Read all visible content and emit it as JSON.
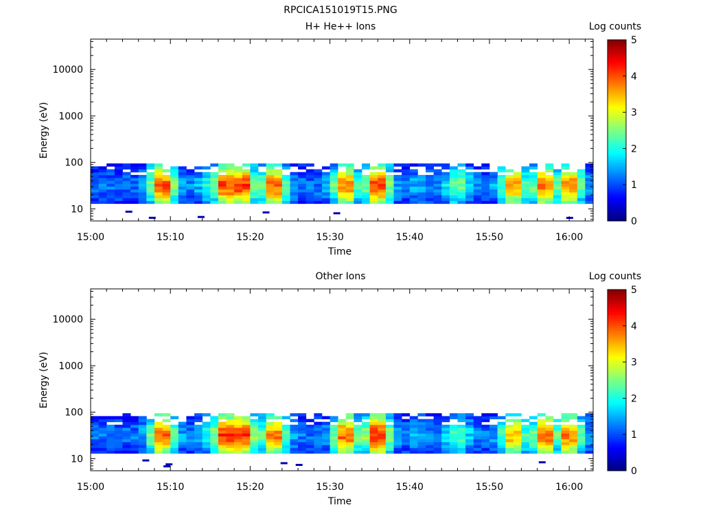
{
  "file_title": "RPCICA151019T15.PNG",
  "chart_data": [
    {
      "type": "heatmap",
      "title": "H+ He++ Ions",
      "xlabel": "Time",
      "ylabel": "Energy (eV)",
      "colorbar_label": "Log counts",
      "colorbar_ticks": [
        "0",
        "1",
        "2",
        "3",
        "4",
        "5"
      ],
      "colorbar_range": [
        0,
        5
      ],
      "colormap": [
        "#00007f",
        "#0000ff",
        "#007fff",
        "#00ffff",
        "#7fff7f",
        "#ffff00",
        "#ff7f00",
        "#ff0000",
        "#7f0000"
      ],
      "x_ticks": [
        "15:00",
        "15:10",
        "15:20",
        "15:30",
        "15:40",
        "15:50",
        "16:00"
      ],
      "x_range_minutes": [
        0,
        63
      ],
      "y_scale": "log",
      "y_range": [
        5.5,
        45000
      ],
      "y_ticks": [
        "10",
        "100",
        "1000",
        "10000"
      ],
      "bands": [
        {
          "t_start": 0,
          "t_end": 63,
          "e_low": 13,
          "e_high": 95,
          "peaks": [
            {
              "t": 9,
              "v": 4.2
            },
            {
              "t": 15,
              "v": 2.0
            },
            {
              "t": 17,
              "v": 4.3
            },
            {
              "t": 19,
              "v": 4.4
            },
            {
              "t": 23,
              "v": 4.1
            },
            {
              "t": 27,
              "v": 1.2
            },
            {
              "t": 32,
              "v": 3.9
            },
            {
              "t": 36,
              "v": 4.3
            },
            {
              "t": 41,
              "v": 1.5
            },
            {
              "t": 46,
              "v": 2.5
            },
            {
              "t": 53,
              "v": 3.8
            },
            {
              "t": 57,
              "v": 4.0
            },
            {
              "t": 60,
              "v": 4.0
            }
          ]
        }
      ]
    },
    {
      "type": "heatmap",
      "title": "Other Ions",
      "xlabel": "Time",
      "ylabel": "Energy (eV)",
      "colorbar_label": "Log counts",
      "colorbar_ticks": [
        "0",
        "1",
        "2",
        "3",
        "4",
        "5"
      ],
      "colorbar_range": [
        0,
        5
      ],
      "colormap": [
        "#00007f",
        "#0000ff",
        "#007fff",
        "#00ffff",
        "#7fff7f",
        "#ffff00",
        "#ff7f00",
        "#ff0000",
        "#7f0000"
      ],
      "x_ticks": [
        "15:00",
        "15:10",
        "15:20",
        "15:30",
        "15:40",
        "15:50",
        "16:00"
      ],
      "x_range_minutes": [
        0,
        63
      ],
      "y_scale": "log",
      "y_range": [
        5.5,
        45000
      ],
      "y_ticks": [
        "10",
        "100",
        "1000",
        "10000"
      ],
      "bands": [
        {
          "t_start": 0,
          "t_end": 63,
          "e_low": 13,
          "e_high": 95,
          "peaks": [
            {
              "t": 9,
              "v": 4.1
            },
            {
              "t": 15,
              "v": 2.0
            },
            {
              "t": 17,
              "v": 4.4
            },
            {
              "t": 19,
              "v": 4.4
            },
            {
              "t": 23,
              "v": 4.0
            },
            {
              "t": 27,
              "v": 1.0
            },
            {
              "t": 32,
              "v": 4.1
            },
            {
              "t": 36,
              "v": 4.5
            },
            {
              "t": 41,
              "v": 1.5
            },
            {
              "t": 46,
              "v": 2.4
            },
            {
              "t": 53,
              "v": 3.7
            },
            {
              "t": 57,
              "v": 4.1
            },
            {
              "t": 60,
              "v": 4.0
            }
          ]
        }
      ]
    }
  ]
}
